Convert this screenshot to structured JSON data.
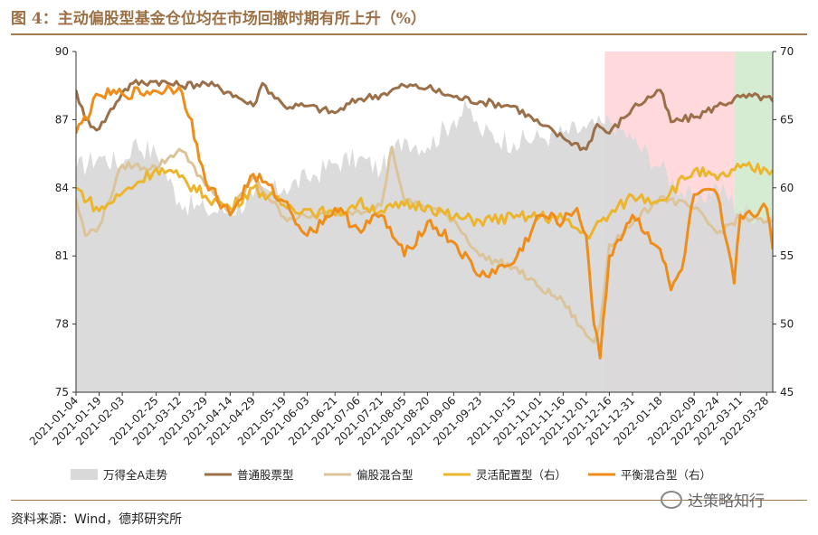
{
  "title": "图 4：主动偏股型基金仓位均在市场回撤时期有所上升（%）",
  "source": "资料来源：Wind，德邦研究所",
  "watermark": "达策略知行",
  "watermark_icon": "wechat-bubble-icon",
  "colors": {
    "title": "#9c7146",
    "rule": "#a27b52",
    "area": "#d9d9d9",
    "shade_red": "#ffd9dc",
    "shade_green": "#d6ecd2"
  },
  "chart_data": {
    "type": "line",
    "title": "",
    "ylim_left": [
      75,
      90
    ],
    "ylim_right": [
      45,
      70
    ],
    "yticks_left": [
      75,
      78,
      81,
      84,
      87,
      90
    ],
    "yticks_right": [
      45,
      50,
      55,
      60,
      65,
      70
    ],
    "x_range": [
      "2021-01-04",
      "2022-04-01"
    ],
    "x_ticks": [
      "2021-01-04",
      "2021-01-19",
      "2021-02-03",
      "2021-02-25",
      "2021-03-12",
      "2021-03-29",
      "2021-04-14",
      "2021-04-29",
      "2021-05-19",
      "2021-06-03",
      "2021-06-21",
      "2021-07-06",
      "2021-07-21",
      "2021-08-05",
      "2021-08-20",
      "2021-09-06",
      "2021-09-23",
      "2021-10-15",
      "2021-11-01",
      "2021-11-16",
      "2021-12-01",
      "2021-12-16",
      "2021-12-31",
      "2022-01-18",
      "2022-02-09",
      "2022-02-24",
      "2022-03-11",
      "2022-03-28"
    ],
    "shaded_periods": [
      {
        "start": "2021-12-13",
        "end": "2022-03-07",
        "color": "#ffd9dc"
      },
      {
        "start": "2022-03-07",
        "end": "2022-04-01",
        "color": "#d6ecd2"
      }
    ],
    "series": [
      {
        "name": "万得全A走势",
        "style": "area",
        "axis": "left",
        "color": "#d9d9d9",
        "x": [
          "2021-01-04",
          "2021-01-19",
          "2021-02-03",
          "2021-02-10",
          "2021-02-25",
          "2021-03-12",
          "2021-03-29",
          "2021-04-14",
          "2021-04-29",
          "2021-05-19",
          "2021-06-03",
          "2021-06-21",
          "2021-07-06",
          "2021-07-21",
          "2021-08-05",
          "2021-08-20",
          "2021-09-06",
          "2021-09-15",
          "2021-09-23",
          "2021-10-15",
          "2021-11-01",
          "2021-11-16",
          "2021-12-01",
          "2021-12-13",
          "2021-12-16",
          "2021-12-31",
          "2022-01-18",
          "2022-02-09",
          "2022-02-24",
          "2022-03-11",
          "2022-03-28",
          "2022-04-01"
        ],
        "values": [
          84.8,
          85.4,
          85.0,
          86.0,
          85.5,
          83.4,
          83.0,
          83.0,
          83.6,
          84.0,
          84.4,
          85.1,
          85.3,
          84.8,
          86.2,
          85.8,
          87.0,
          87.5,
          86.5,
          86.0,
          86.2,
          86.4,
          86.6,
          86.8,
          87.0,
          86.1,
          84.9,
          83.3,
          84.1,
          83.0,
          82.7,
          82.8
        ]
      },
      {
        "name": "普通股票型",
        "style": "line",
        "axis": "left",
        "color": "#9b7049",
        "x": [
          "2021-01-04",
          "2021-01-10",
          "2021-01-19",
          "2021-02-03",
          "2021-02-10",
          "2021-02-25",
          "2021-03-12",
          "2021-03-29",
          "2021-04-14",
          "2021-04-29",
          "2021-05-05",
          "2021-05-19",
          "2021-06-03",
          "2021-06-21",
          "2021-07-06",
          "2021-07-21",
          "2021-08-05",
          "2021-08-20",
          "2021-09-06",
          "2021-09-23",
          "2021-10-15",
          "2021-11-01",
          "2021-11-16",
          "2021-12-01",
          "2021-12-08",
          "2021-12-16",
          "2021-12-31",
          "2022-01-18",
          "2022-01-25",
          "2022-02-09",
          "2022-02-24",
          "2022-03-11",
          "2022-03-28",
          "2022-04-01"
        ],
        "values": [
          88.3,
          87.0,
          86.6,
          88.2,
          88.6,
          88.7,
          88.5,
          88.6,
          88.2,
          87.6,
          88.6,
          87.6,
          87.6,
          87.3,
          87.9,
          88.1,
          88.5,
          88.4,
          88.0,
          87.8,
          87.6,
          86.8,
          86.2,
          85.7,
          86.8,
          86.4,
          87.5,
          88.3,
          86.9,
          87.1,
          87.6,
          88.0,
          88.0,
          87.8
        ]
      },
      {
        "name": "偏股混合型",
        "style": "line",
        "axis": "left",
        "color": "#dcc49a",
        "x": [
          "2021-01-04",
          "2021-01-10",
          "2021-01-19",
          "2021-02-03",
          "2021-02-25",
          "2021-03-12",
          "2021-03-20",
          "2021-03-29",
          "2021-04-14",
          "2021-04-29",
          "2021-05-19",
          "2021-06-03",
          "2021-06-21",
          "2021-07-06",
          "2021-07-21",
          "2021-07-28",
          "2021-08-05",
          "2021-08-20",
          "2021-09-06",
          "2021-09-23",
          "2021-10-15",
          "2021-11-01",
          "2021-11-16",
          "2021-12-01",
          "2021-12-06",
          "2021-12-10",
          "2021-12-16",
          "2021-12-31",
          "2022-01-18",
          "2022-02-09",
          "2022-02-24",
          "2022-03-11",
          "2022-03-28",
          "2022-04-01"
        ],
        "values": [
          83.5,
          81.9,
          82.3,
          85.0,
          84.9,
          85.7,
          85.1,
          84.1,
          82.9,
          84.5,
          82.7,
          82.7,
          82.9,
          83.0,
          83.2,
          85.8,
          83.4,
          83.2,
          82.6,
          81.0,
          80.5,
          79.6,
          79.0,
          77.5,
          77.2,
          78.0,
          81.5,
          82.4,
          83.6,
          83.1,
          82.0,
          82.7,
          82.5,
          82.5
        ]
      },
      {
        "name": "灵活配置型（右）",
        "style": "line",
        "axis": "right",
        "color": "#ebb52e",
        "x": [
          "2021-01-04",
          "2021-01-19",
          "2021-02-03",
          "2021-02-25",
          "2021-03-12",
          "2021-03-29",
          "2021-04-14",
          "2021-04-29",
          "2021-05-19",
          "2021-06-03",
          "2021-06-21",
          "2021-07-06",
          "2021-07-21",
          "2021-08-05",
          "2021-08-20",
          "2021-09-06",
          "2021-09-23",
          "2021-10-15",
          "2021-11-01",
          "2021-11-16",
          "2021-12-01",
          "2021-12-16",
          "2021-12-31",
          "2022-01-18",
          "2022-02-09",
          "2022-02-24",
          "2022-03-11",
          "2022-03-28",
          "2022-04-01"
        ],
        "values": [
          60.0,
          58.3,
          59.6,
          61.4,
          60.8,
          59.4,
          58.5,
          60.0,
          58.7,
          58.4,
          58.0,
          58.9,
          58.3,
          58.7,
          58.7,
          57.8,
          57.6,
          57.8,
          57.9,
          57.7,
          56.5,
          58.0,
          59.4,
          59.1,
          61.3,
          60.6,
          61.5,
          61.3,
          61.3
        ]
      },
      {
        "name": "平衡混合型（右）",
        "style": "line",
        "axis": "right",
        "color": "#ee8d1a",
        "x": [
          "2021-01-04",
          "2021-01-19",
          "2021-02-03",
          "2021-02-25",
          "2021-03-12",
          "2021-03-20",
          "2021-03-25",
          "2021-03-29",
          "2021-04-14",
          "2021-04-29",
          "2021-05-19",
          "2021-06-03",
          "2021-06-21",
          "2021-07-06",
          "2021-07-21",
          "2021-08-05",
          "2021-08-20",
          "2021-09-06",
          "2021-09-23",
          "2021-10-15",
          "2021-11-01",
          "2021-11-16",
          "2021-11-25",
          "2021-12-01",
          "2021-12-06",
          "2021-12-10",
          "2021-12-16",
          "2021-12-31",
          "2022-01-18",
          "2022-01-25",
          "2022-02-01",
          "2022-02-09",
          "2022-02-24",
          "2022-03-01",
          "2022-03-07",
          "2022-03-11",
          "2022-03-28",
          "2022-04-01"
        ],
        "values": [
          64.0,
          66.8,
          66.9,
          67.1,
          67.4,
          65.0,
          62.0,
          60.5,
          58.0,
          61.0,
          59.0,
          56.5,
          58.5,
          57.0,
          58.0,
          55.0,
          57.5,
          56.0,
          53.5,
          54.5,
          58.0,
          57.5,
          58.5,
          56.5,
          50.0,
          47.5,
          55.0,
          58.0,
          55.5,
          52.5,
          54.0,
          59.5,
          59.5,
          56.5,
          53.0,
          58.0,
          58.5,
          55.5
        ]
      }
    ]
  }
}
